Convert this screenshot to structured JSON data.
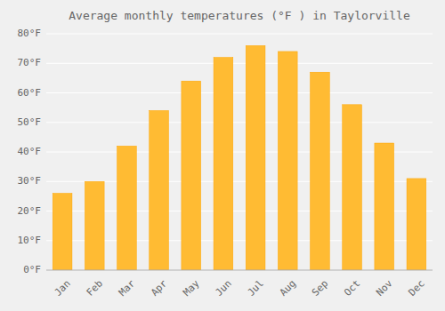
{
  "chart_data": {
    "type": "bar",
    "title": "Average monthly temperatures (°F ) in Taylorville",
    "categories": [
      "Jan",
      "Feb",
      "Mar",
      "Apr",
      "May",
      "Jun",
      "Jul",
      "Aug",
      "Sep",
      "Oct",
      "Nov",
      "Dec"
    ],
    "values": [
      26,
      30,
      42,
      54,
      64,
      72,
      76,
      74,
      67,
      56,
      43,
      31
    ],
    "color": "#FFBB33",
    "ylim": [
      0,
      80
    ],
    "yticks": [
      {
        "value": 0,
        "label": "0°F"
      },
      {
        "value": 10,
        "label": "10°F"
      },
      {
        "value": 20,
        "label": "20°F"
      },
      {
        "value": 30,
        "label": "30°F"
      },
      {
        "value": 40,
        "label": "40°F"
      },
      {
        "value": 50,
        "label": "50°F"
      },
      {
        "value": 60,
        "label": "60°F"
      },
      {
        "value": 70,
        "label": "70°F"
      },
      {
        "value": 80,
        "label": "80°F"
      }
    ],
    "grid": true
  }
}
